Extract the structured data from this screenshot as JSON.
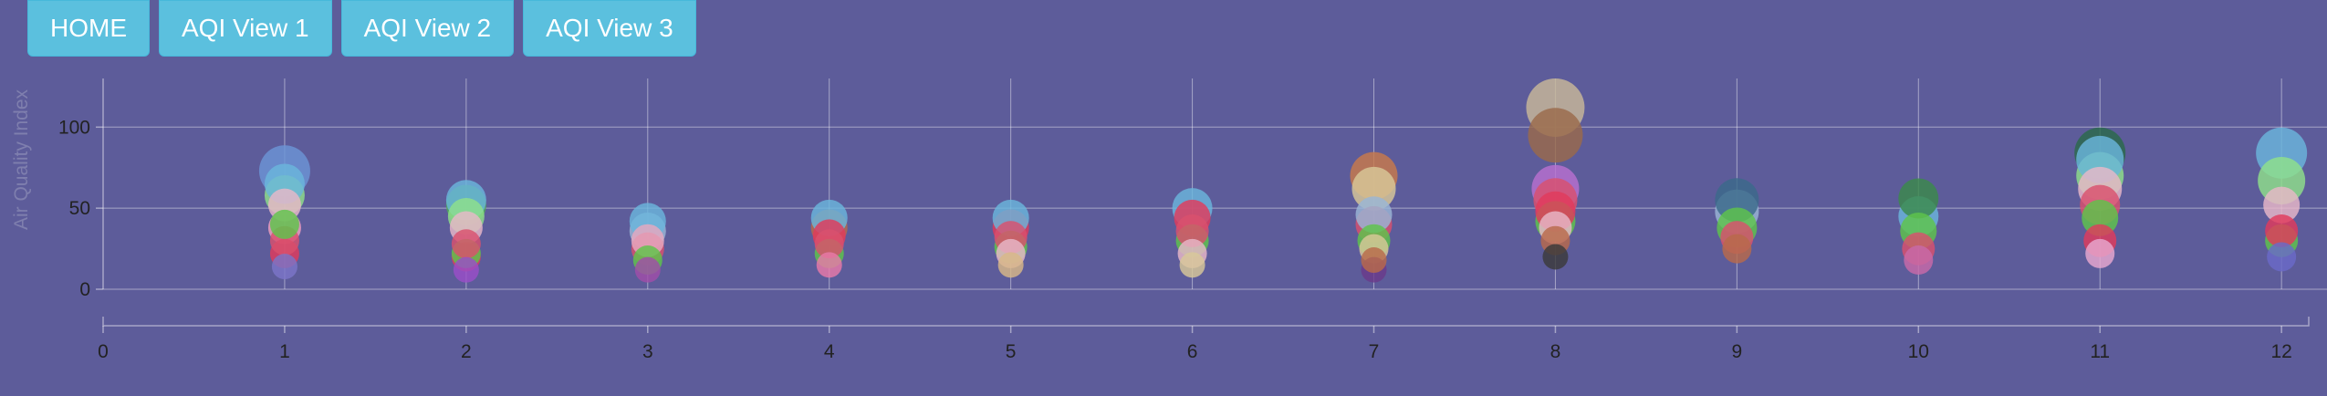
{
  "nav": {
    "buttons": [
      "HOME",
      "AQI View 1",
      "AQI View 2",
      "AQI View 3"
    ],
    "color": "#5bc0de"
  },
  "chart_data": {
    "type": "scatter",
    "title": "",
    "xlabel": "",
    "ylabel": "Air Quality Index",
    "xlim": [
      0,
      12.15
    ],
    "ylim": [
      0,
      130
    ],
    "x_ticks": [
      "0",
      "1",
      "2",
      "3",
      "4",
      "5",
      "6",
      "7",
      "8",
      "9",
      "10",
      "11",
      "12"
    ],
    "y_ticks": [
      "0",
      "50",
      "100"
    ],
    "grid": true,
    "background": "#5d5c9a",
    "bubbles": [
      {
        "x": 1,
        "y": 14,
        "r": 14,
        "color": "#7b75c8"
      },
      {
        "x": 1,
        "y": 22,
        "r": 16,
        "color": "#e03a5c"
      },
      {
        "x": 1,
        "y": 30,
        "r": 16,
        "color": "#d9506e"
      },
      {
        "x": 1,
        "y": 38,
        "r": 18,
        "color": "#f0a0c0"
      },
      {
        "x": 1,
        "y": 40,
        "r": 16,
        "color": "#5ec44a"
      },
      {
        "x": 1,
        "y": 52,
        "r": 18,
        "color": "#e8b8c8"
      },
      {
        "x": 1,
        "y": 58,
        "r": 22,
        "color": "#8fe08a"
      },
      {
        "x": 1,
        "y": 65,
        "r": 22,
        "color": "#6ab6dc"
      },
      {
        "x": 1,
        "y": 73,
        "r": 28,
        "color": "#6b95d6"
      },
      {
        "x": 2,
        "y": 12,
        "r": 14,
        "color": "#9a4ec8"
      },
      {
        "x": 2,
        "y": 20,
        "r": 16,
        "color": "#e03a5c"
      },
      {
        "x": 2,
        "y": 22,
        "r": 16,
        "color": "#5ec44a"
      },
      {
        "x": 2,
        "y": 28,
        "r": 16,
        "color": "#d9506e"
      },
      {
        "x": 2,
        "y": 38,
        "r": 18,
        "color": "#e8b8c8"
      },
      {
        "x": 2,
        "y": 45,
        "r": 20,
        "color": "#8fe08a"
      },
      {
        "x": 2,
        "y": 52,
        "r": 22,
        "color": "#4eaa5a"
      },
      {
        "x": 2,
        "y": 55,
        "r": 22,
        "color": "#6ab6dc"
      },
      {
        "x": 3,
        "y": 12,
        "r": 14,
        "color": "#a04ea8"
      },
      {
        "x": 3,
        "y": 18,
        "r": 16,
        "color": "#5ec44a"
      },
      {
        "x": 3,
        "y": 25,
        "r": 18,
        "color": "#d9506e"
      },
      {
        "x": 3,
        "y": 30,
        "r": 18,
        "color": "#e8a8c0"
      },
      {
        "x": 3,
        "y": 36,
        "r": 20,
        "color": "#9ab6d6"
      },
      {
        "x": 3,
        "y": 42,
        "r": 20,
        "color": "#6ab6dc"
      },
      {
        "x": 4,
        "y": 15,
        "r": 14,
        "color": "#e87aa8"
      },
      {
        "x": 4,
        "y": 22,
        "r": 16,
        "color": "#5ec44a"
      },
      {
        "x": 4,
        "y": 28,
        "r": 16,
        "color": "#d9506e"
      },
      {
        "x": 4,
        "y": 33,
        "r": 18,
        "color": "#e03a5c"
      },
      {
        "x": 4,
        "y": 38,
        "r": 20,
        "color": "#b86a4a"
      },
      {
        "x": 4,
        "y": 44,
        "r": 20,
        "color": "#6ab6dc"
      },
      {
        "x": 5,
        "y": 15,
        "r": 14,
        "color": "#d8b888"
      },
      {
        "x": 5,
        "y": 22,
        "r": 16,
        "color": "#e8b8c8"
      },
      {
        "x": 5,
        "y": 26,
        "r": 18,
        "color": "#5ec44a"
      },
      {
        "x": 5,
        "y": 32,
        "r": 18,
        "color": "#d9506e"
      },
      {
        "x": 5,
        "y": 38,
        "r": 20,
        "color": "#e03a5c"
      },
      {
        "x": 5,
        "y": 44,
        "r": 20,
        "color": "#6ab6dc"
      },
      {
        "x": 6,
        "y": 15,
        "r": 14,
        "color": "#d8c898"
      },
      {
        "x": 6,
        "y": 22,
        "r": 16,
        "color": "#e8b8c8"
      },
      {
        "x": 6,
        "y": 30,
        "r": 18,
        "color": "#5ec44a"
      },
      {
        "x": 6,
        "y": 36,
        "r": 18,
        "color": "#d9506e"
      },
      {
        "x": 6,
        "y": 44,
        "r": 20,
        "color": "#e03a5c"
      },
      {
        "x": 6,
        "y": 50,
        "r": 22,
        "color": "#6ab6dc"
      },
      {
        "x": 7,
        "y": 12,
        "r": 14,
        "color": "#6a3a8a"
      },
      {
        "x": 7,
        "y": 18,
        "r": 14,
        "color": "#b86a4a"
      },
      {
        "x": 7,
        "y": 25,
        "r": 16,
        "color": "#d8c898"
      },
      {
        "x": 7,
        "y": 30,
        "r": 18,
        "color": "#5ec44a"
      },
      {
        "x": 7,
        "y": 40,
        "r": 20,
        "color": "#d9506e"
      },
      {
        "x": 7,
        "y": 46,
        "r": 20,
        "color": "#9ab6d6"
      },
      {
        "x": 7,
        "y": 62,
        "r": 24,
        "color": "#d8c898"
      },
      {
        "x": 7,
        "y": 70,
        "r": 26,
        "color": "#c87a4a"
      },
      {
        "x": 8,
        "y": 20,
        "r": 14,
        "color": "#3a3a3a"
      },
      {
        "x": 8,
        "y": 30,
        "r": 16,
        "color": "#b86a4a"
      },
      {
        "x": 8,
        "y": 38,
        "r": 18,
        "color": "#e8b8c8"
      },
      {
        "x": 8,
        "y": 42,
        "r": 22,
        "color": "#5ec44a"
      },
      {
        "x": 8,
        "y": 48,
        "r": 22,
        "color": "#e03a5c"
      },
      {
        "x": 8,
        "y": 55,
        "r": 24,
        "color": "#d9506e"
      },
      {
        "x": 8,
        "y": 62,
        "r": 26,
        "color": "#b870d0"
      },
      {
        "x": 8,
        "y": 95,
        "r": 30,
        "color": "#9a6a4a"
      },
      {
        "x": 8,
        "y": 112,
        "r": 32,
        "color": "#c8b898"
      },
      {
        "x": 9,
        "y": 25,
        "r": 16,
        "color": "#b86a4a"
      },
      {
        "x": 9,
        "y": 32,
        "r": 18,
        "color": "#d9506e"
      },
      {
        "x": 9,
        "y": 38,
        "r": 22,
        "color": "#5ec44a"
      },
      {
        "x": 9,
        "y": 48,
        "r": 24,
        "color": "#9ab6d6"
      },
      {
        "x": 9,
        "y": 55,
        "r": 24,
        "color": "#3a6a8a"
      },
      {
        "x": 10,
        "y": 18,
        "r": 16,
        "color": "#c86aa8"
      },
      {
        "x": 10,
        "y": 25,
        "r": 18,
        "color": "#d9506e"
      },
      {
        "x": 10,
        "y": 36,
        "r": 20,
        "color": "#5ec44a"
      },
      {
        "x": 10,
        "y": 45,
        "r": 22,
        "color": "#6ab6dc"
      },
      {
        "x": 10,
        "y": 56,
        "r": 22,
        "color": "#3a8a4a"
      },
      {
        "x": 11,
        "y": 22,
        "r": 16,
        "color": "#e8a8d0"
      },
      {
        "x": 11,
        "y": 30,
        "r": 18,
        "color": "#e03a5c"
      },
      {
        "x": 11,
        "y": 44,
        "r": 20,
        "color": "#5ec44a"
      },
      {
        "x": 11,
        "y": 52,
        "r": 22,
        "color": "#d9506e"
      },
      {
        "x": 11,
        "y": 62,
        "r": 24,
        "color": "#e8b8c8"
      },
      {
        "x": 11,
        "y": 70,
        "r": 26,
        "color": "#8fe08a"
      },
      {
        "x": 11,
        "y": 80,
        "r": 26,
        "color": "#6ab6dc"
      },
      {
        "x": 11,
        "y": 84,
        "r": 28,
        "color": "#2a6a4a"
      },
      {
        "x": 12,
        "y": 20,
        "r": 16,
        "color": "#6a6ac8"
      },
      {
        "x": 12,
        "y": 30,
        "r": 18,
        "color": "#5ec44a"
      },
      {
        "x": 12,
        "y": 36,
        "r": 18,
        "color": "#e03a5c"
      },
      {
        "x": 12,
        "y": 52,
        "r": 20,
        "color": "#e8b8c8"
      },
      {
        "x": 12,
        "y": 67,
        "r": 26,
        "color": "#8fe08a"
      },
      {
        "x": 12,
        "y": 84,
        "r": 28,
        "color": "#6ab6dc"
      }
    ]
  }
}
